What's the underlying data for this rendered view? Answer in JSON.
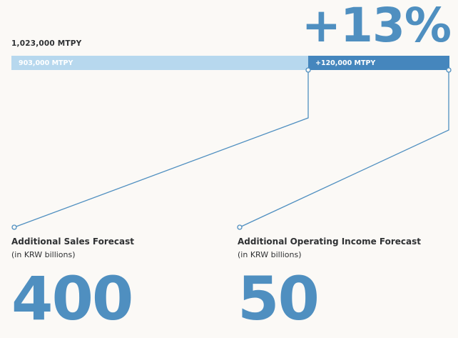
{
  "capacity": {
    "total_label": "1,023,000 MTPY",
    "base_label": "903,000 MTPY",
    "base_value": 903000,
    "added_label": "+120,000 MTPY",
    "added_value": 120000,
    "increase_percent": "+13%"
  },
  "metrics": [
    {
      "title": "Additional Sales Forecast",
      "unit": "(in KRW billions)",
      "value": "400"
    },
    {
      "title": "Additional Operating Income Forecast",
      "unit": "(in KRW billions)",
      "value": "50"
    }
  ],
  "colors": {
    "light": "#b7d8ee",
    "dark": "#4586bd",
    "accent": "#4f8fc0"
  }
}
